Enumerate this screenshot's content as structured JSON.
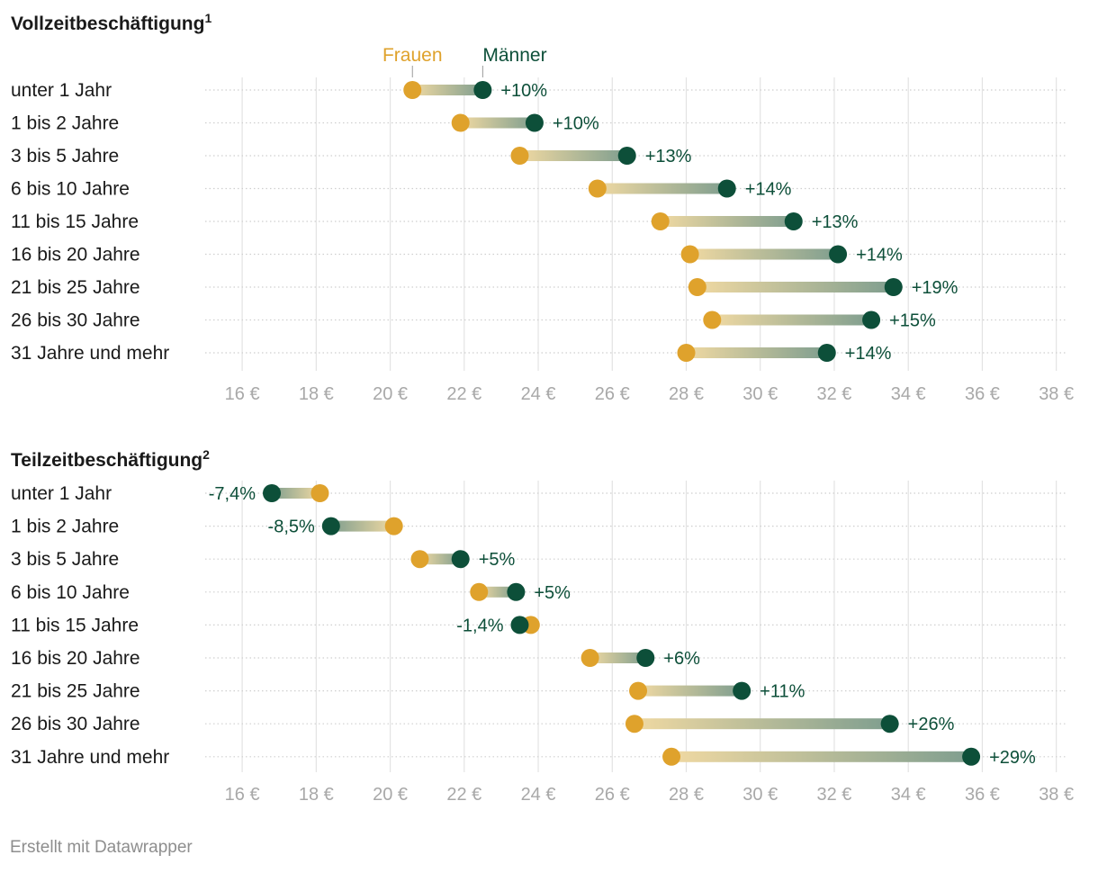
{
  "colors": {
    "frauen": "#dfa22c",
    "maenner": "#0d4f39",
    "gradient_light": "#f0d9a2",
    "gradient_dark": "#7f9e8f",
    "grid": "#e3e3e3",
    "dots": "#cfcfcf"
  },
  "legend": {
    "frauen": "Frauen",
    "maenner": "Männer"
  },
  "footer": {
    "credit": "Erstellt mit Datawrapper"
  },
  "chart_data": [
    {
      "type": "dumbbell",
      "title": "Vollzeitbeschäftigung",
      "title_sup": "1",
      "xlim": [
        15,
        38.3
      ],
      "ticks": [
        16,
        18,
        20,
        22,
        24,
        26,
        28,
        30,
        32,
        34,
        36,
        38
      ],
      "tick_labels": [
        "16 €",
        "18 €",
        "20 €",
        "22 €",
        "24 €",
        "26 €",
        "28 €",
        "30 €",
        "32 €",
        "34 €",
        "36 €",
        "38 €"
      ],
      "categories": [
        "unter 1 Jahr",
        "1 bis 2 Jahre",
        "3 bis 5 Jahre",
        "6 bis 10 Jahre",
        "11 bis 15 Jahre",
        "16 bis 20 Jahre",
        "21 bis 25 Jahre",
        "26 bis 30 Jahre",
        "31 Jahre und mehr"
      ],
      "series": [
        {
          "name": "Frauen",
          "values": [
            20.6,
            21.9,
            23.5,
            25.6,
            27.3,
            28.1,
            28.3,
            28.7,
            28.0
          ]
        },
        {
          "name": "Männer",
          "values": [
            22.5,
            23.9,
            26.4,
            29.1,
            30.9,
            32.1,
            33.6,
            33.0,
            31.8
          ]
        }
      ],
      "diff_labels": [
        "+10%",
        "+10%",
        "+13%",
        "+14%",
        "+13%",
        "+14%",
        "+19%",
        "+15%",
        "+14%"
      ]
    },
    {
      "type": "dumbbell",
      "title": "Teilzeitbeschäftigung",
      "title_sup": "2",
      "xlim": [
        15,
        38.3
      ],
      "ticks": [
        16,
        18,
        20,
        22,
        24,
        26,
        28,
        30,
        32,
        34,
        36,
        38
      ],
      "tick_labels": [
        "16 €",
        "18 €",
        "20 €",
        "22 €",
        "24 €",
        "26 €",
        "28 €",
        "30 €",
        "32 €",
        "34 €",
        "36 €",
        "38 €"
      ],
      "categories": [
        "unter 1 Jahr",
        "1 bis 2 Jahre",
        "3 bis 5 Jahre",
        "6 bis 10 Jahre",
        "11 bis 15 Jahre",
        "16 bis 20 Jahre",
        "21 bis 25 Jahre",
        "26 bis 30 Jahre",
        "31 Jahre und mehr"
      ],
      "series": [
        {
          "name": "Frauen",
          "values": [
            18.1,
            20.1,
            20.8,
            22.4,
            23.8,
            25.4,
            26.7,
            26.6,
            27.6
          ]
        },
        {
          "name": "Männer",
          "values": [
            16.8,
            18.4,
            21.9,
            23.4,
            23.5,
            26.9,
            29.5,
            33.5,
            35.7
          ]
        }
      ],
      "diff_labels": [
        "-7,4%",
        "-8,5%",
        "+5%",
        "+5%",
        "-1,4%",
        "+6%",
        "+11%",
        "+26%",
        "+29%"
      ]
    }
  ]
}
